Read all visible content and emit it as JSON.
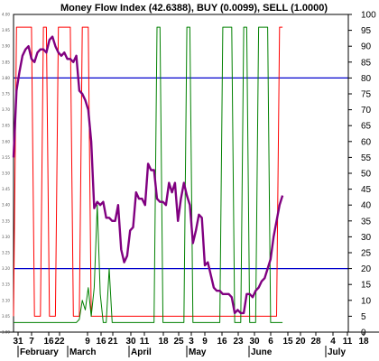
{
  "chart_data": {
    "type": "line",
    "title": "Money Flow Index (42.6388), BUY (0.0099), SELL (1.0000)",
    "y_ticks_right": [
      0,
      5,
      10,
      15,
      20,
      25,
      30,
      35,
      40,
      45,
      50,
      55,
      60,
      65,
      70,
      75,
      80,
      85,
      90,
      95,
      100
    ],
    "y_ticks_left": [
      "3.00",
      "3.05",
      "3.10",
      "3.15",
      "3.20",
      "3.25",
      "3.30",
      "3.35",
      "3.40",
      "3.45",
      "3.50",
      "3.55",
      "3.60",
      "3.65",
      "3.70",
      "3.75",
      "3.80",
      "3.85",
      "3.90",
      "3.95",
      "4.00"
    ],
    "x_day_labels": [
      "31",
      "7",
      "16",
      "22",
      "9",
      "16",
      "21",
      "30",
      "11",
      "18",
      "25",
      "3",
      "9",
      "16",
      "23",
      "30",
      "6",
      "15",
      "20",
      "28",
      "4",
      "11",
      "18"
    ],
    "x_month_labels": [
      "February",
      "March",
      "April",
      "May",
      "June",
      "July"
    ],
    "reference_lines": [
      20,
      80
    ],
    "x_range": [
      0,
      112
    ],
    "ylim": [
      0,
      100
    ],
    "colors": {
      "mfi": "#800080",
      "buy": "#008000",
      "sell": "#ff0000",
      "ref": "#0000cc"
    },
    "series": [
      {
        "key": "mfi",
        "x": [
          0,
          1,
          2,
          3,
          4,
          5,
          6,
          7,
          8,
          9,
          10,
          11,
          12,
          13,
          14,
          15,
          16,
          17,
          18,
          19,
          20,
          21,
          22,
          23,
          24,
          25,
          26,
          27,
          28,
          29,
          30,
          31,
          32,
          33,
          34,
          35,
          36,
          37,
          38,
          39,
          40,
          41,
          42,
          43,
          44,
          45,
          46,
          47,
          48,
          49,
          50,
          51,
          52,
          53,
          54,
          55,
          56,
          57,
          58,
          59,
          60,
          61,
          62,
          63,
          64,
          65,
          66,
          67,
          68,
          69,
          70,
          71,
          72,
          73,
          74,
          75,
          76,
          77,
          78,
          79,
          80,
          81,
          82,
          83,
          84,
          85,
          86,
          87,
          88,
          89,
          90,
          91,
          92,
          93,
          94,
          95,
          96,
          97,
          98,
          99,
          100,
          101,
          102,
          103,
          104,
          105,
          106
        ],
        "y": [
          55,
          76,
          82,
          87,
          89,
          90,
          86,
          85,
          88,
          89,
          89,
          88,
          92,
          93,
          90,
          88,
          87,
          88,
          86,
          86,
          85,
          87,
          76,
          75,
          73,
          70,
          60,
          39,
          41,
          40,
          41,
          36,
          36,
          35,
          35,
          40,
          26,
          22,
          24,
          32,
          33,
          44,
          42,
          42,
          40,
          53,
          51,
          51,
          42,
          41,
          41,
          40,
          47,
          44,
          47,
          35,
          42,
          47,
          43,
          40,
          28,
          32,
          37,
          36,
          21,
          22,
          18,
          14,
          13,
          13,
          12,
          12,
          12,
          11,
          6,
          7,
          6,
          6,
          12,
          12,
          11,
          13,
          14,
          16,
          17,
          20,
          23,
          30,
          35,
          40,
          43,
          null,
          null,
          null,
          null,
          null,
          null,
          null,
          null,
          null,
          null,
          null,
          null,
          null,
          null,
          null,
          null
        ]
      },
      {
        "key": "sell",
        "x": [
          0,
          1,
          2,
          3,
          4,
          5,
          6,
          7,
          8,
          9,
          10,
          11,
          12,
          13,
          14,
          15,
          16,
          17,
          18,
          19,
          20,
          21,
          22,
          23,
          24,
          25,
          26,
          27,
          28,
          29,
          30,
          31,
          32,
          33,
          34,
          35,
          36,
          37,
          38,
          39,
          40,
          41,
          42,
          43,
          44,
          45,
          46,
          47,
          48,
          49,
          50,
          51,
          52,
          53,
          54,
          55,
          56,
          57,
          58,
          59,
          60,
          61,
          62,
          63,
          64,
          65,
          66,
          67,
          68,
          69,
          70,
          71,
          72,
          73,
          74,
          75,
          76,
          77,
          78,
          79,
          80,
          81,
          82,
          83,
          84,
          85,
          86,
          87,
          88,
          89,
          90
        ],
        "y": [
          5,
          96,
          96,
          96,
          96,
          96,
          96,
          5,
          5,
          5,
          96,
          96,
          5,
          5,
          5,
          96,
          96,
          96,
          96,
          96,
          5,
          5,
          5,
          96,
          96,
          96,
          5,
          5,
          5,
          5,
          5,
          5,
          5,
          5,
          5,
          5,
          5,
          5,
          5,
          5,
          5,
          5,
          5,
          5,
          5,
          5,
          5,
          5,
          5,
          5,
          5,
          5,
          5,
          5,
          5,
          5,
          5,
          5,
          5,
          5,
          5,
          5,
          5,
          5,
          5,
          5,
          5,
          5,
          5,
          5,
          5,
          5,
          5,
          5,
          5,
          5,
          5,
          5,
          5,
          5,
          5,
          5,
          5,
          5,
          5,
          5,
          5,
          5,
          5,
          96,
          96
        ]
      },
      {
        "key": "buy",
        "x": [
          0,
          1,
          2,
          3,
          4,
          5,
          6,
          7,
          8,
          9,
          10,
          11,
          12,
          13,
          14,
          15,
          16,
          17,
          18,
          19,
          20,
          21,
          22,
          23,
          24,
          25,
          26,
          27,
          28,
          29,
          30,
          31,
          32,
          33,
          34,
          35,
          36,
          37,
          38,
          39,
          40,
          41,
          42,
          43,
          44,
          45,
          46,
          47,
          48,
          49,
          50,
          51,
          52,
          53,
          54,
          55,
          56,
          57,
          58,
          59,
          60,
          61,
          62,
          63,
          64,
          65,
          66,
          67,
          68,
          69,
          70,
          71,
          72,
          73,
          74,
          75,
          76,
          77,
          78,
          79,
          80,
          81,
          82,
          83,
          84,
          85,
          86,
          87,
          88,
          89,
          90
        ],
        "y": [
          3,
          3,
          3,
          3,
          3,
          3,
          3,
          3,
          3,
          3,
          3,
          3,
          3,
          3,
          3,
          3,
          3,
          3,
          3,
          3,
          3,
          3,
          4,
          10,
          7,
          14,
          5,
          14,
          40,
          12,
          3,
          3,
          20,
          3,
          3,
          3,
          3,
          3,
          3,
          3,
          3,
          3,
          3,
          3,
          3,
          3,
          3,
          3,
          96,
          96,
          3,
          3,
          3,
          3,
          3,
          3,
          3,
          3,
          96,
          96,
          3,
          3,
          3,
          3,
          3,
          3,
          3,
          3,
          3,
          3,
          96,
          96,
          96,
          96,
          3,
          3,
          3,
          96,
          96,
          3,
          3,
          3,
          96,
          96,
          96,
          96,
          3,
          3,
          3,
          3,
          3
        ]
      }
    ]
  }
}
